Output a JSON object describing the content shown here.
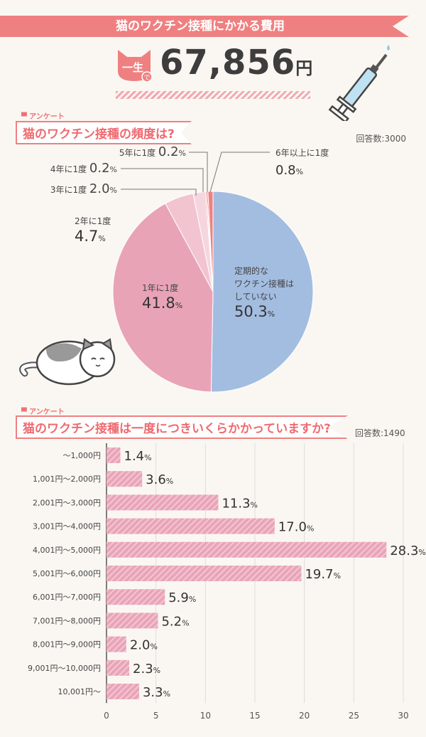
{
  "header": {
    "title": "猫のワクチン接種にかかる費用",
    "badge_text": "一生",
    "badge_sub": "で",
    "amount": "67,856",
    "unit": "円"
  },
  "colors": {
    "accent": "#ef8081",
    "blue": "#a3bde0",
    "pink": "#e8a3b7",
    "bar": "#e9a4b8"
  },
  "chart_data": [
    {
      "type": "pie",
      "tag": "アンケート",
      "title": "猫のワクチン接種の頻度は?",
      "responses": "回答数:3000",
      "slices": [
        {
          "label": "定期的なワクチン接種はしていない",
          "label_lines": [
            "定期的な",
            "ワクチン接種は",
            "していない"
          ],
          "value": 50.3,
          "value_text": "50.3",
          "color": "#a3bde0"
        },
        {
          "label": "1年に1度",
          "value": 41.8,
          "value_text": "41.8",
          "color": "#e8a3b7"
        },
        {
          "label": "2年に1度",
          "value": 4.7,
          "value_text": "4.7",
          "color": "#f1c4d0"
        },
        {
          "label": "3年に1度",
          "value": 2.0,
          "value_text": "2.0",
          "color": "#f6d6de"
        },
        {
          "label": "4年に1度",
          "value": 0.2,
          "value_text": "0.2",
          "color": "#ef8081"
        },
        {
          "label": "5年に1度",
          "value": 0.2,
          "value_text": "0.2",
          "color": "#e86070"
        },
        {
          "label": "6年以上に1度",
          "value": 0.8,
          "value_text": "0.8",
          "color": "#ef8081"
        }
      ],
      "unit": "%"
    },
    {
      "type": "bar",
      "orientation": "horizontal",
      "tag": "アンケート",
      "title": "猫のワクチン接種は一度につきいくらかかっていますか?",
      "responses": "回答数:1490",
      "categories": [
        "〜1,000円",
        "1,001円〜2,000円",
        "2,001円〜3,000円",
        "3,001円〜4,000円",
        "4,001円〜5,000円",
        "5,001円〜6,000円",
        "6,001円〜7,000円",
        "7,001円〜8,000円",
        "8,001円〜9,000円",
        "9,001円〜10,000円",
        "10,001円〜"
      ],
      "values": [
        1.4,
        3.6,
        11.3,
        17.0,
        28.3,
        19.7,
        5.9,
        5.2,
        2.0,
        2.3,
        3.3
      ],
      "value_texts": [
        "1.4",
        "3.6",
        "11.3",
        "17.0",
        "28.3",
        "19.7",
        "5.9",
        "5.2",
        "2.0",
        "2.3",
        "3.3"
      ],
      "unit": "%",
      "xlim": [
        0,
        30
      ],
      "xticks": [
        "0",
        "5",
        "10",
        "15",
        "20",
        "25",
        "30"
      ],
      "grid": true
    }
  ]
}
